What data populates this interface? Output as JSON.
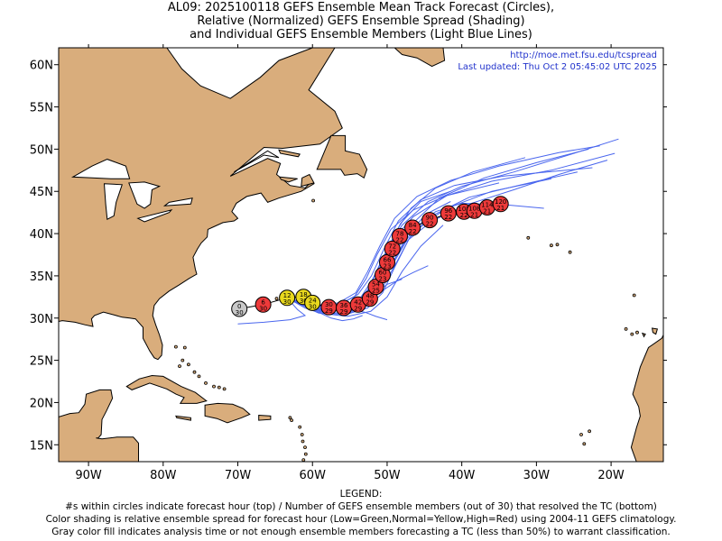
{
  "title": {
    "line1": "AL09: 2025100118 GEFS Ensemble Mean Track Forecast (Circles),",
    "line2": "Relative (Normalized) GEFS Ensemble Spread (Shading)",
    "line3": "and Individual GEFS Ensemble Members (Light Blue Lines)"
  },
  "credit": {
    "url": "http://moe.met.fsu.edu/tcspread",
    "updated": "Last updated: Thu Oct 2 05:45:02 UTC 2025"
  },
  "axes": {
    "lon_range": [
      -94,
      -13
    ],
    "lat_range": [
      13,
      62
    ],
    "x_ticks": [
      {
        "lon": -90,
        "label": "90W"
      },
      {
        "lon": -80,
        "label": "80W"
      },
      {
        "lon": -70,
        "label": "70W"
      },
      {
        "lon": -60,
        "label": "60W"
      },
      {
        "lon": -50,
        "label": "50W"
      },
      {
        "lon": -40,
        "label": "40W"
      },
      {
        "lon": -30,
        "label": "30W"
      },
      {
        "lon": -20,
        "label": "20W"
      }
    ],
    "y_ticks": [
      {
        "lat": 15,
        "label": "15N"
      },
      {
        "lat": 20,
        "label": "20N"
      },
      {
        "lat": 25,
        "label": "25N"
      },
      {
        "lat": 30,
        "label": "30N"
      },
      {
        "lat": 35,
        "label": "35N"
      },
      {
        "lat": 40,
        "label": "40N"
      },
      {
        "lat": 45,
        "label": "45N"
      },
      {
        "lat": 50,
        "label": "50N"
      },
      {
        "lat": 55,
        "label": "55N"
      },
      {
        "lat": 60,
        "label": "60N"
      }
    ]
  },
  "colors": {
    "land": "#d9ad7c",
    "ocean": "#ffffff",
    "member_line": "#4a66ee",
    "analysis": "#c8c8c8",
    "normal": "#e8d81e",
    "high": "#ee3a3a"
  },
  "track": [
    {
      "hour": "0",
      "members": "30",
      "lon": -69.8,
      "lat": 31.1,
      "spread": "analysis"
    },
    {
      "hour": "6",
      "members": "30",
      "lon": -66.6,
      "lat": 31.6,
      "spread": "high"
    },
    {
      "hour": "12",
      "members": "30",
      "lon": -63.4,
      "lat": 32.4,
      "spread": "normal"
    },
    {
      "hour": "18",
      "members": "30",
      "lon": -61.2,
      "lat": 32.5,
      "spread": "normal"
    },
    {
      "hour": "24",
      "members": "30",
      "lon": -60.0,
      "lat": 31.8,
      "spread": "normal"
    },
    {
      "hour": "30",
      "members": "29",
      "lon": -57.8,
      "lat": 31.3,
      "spread": "high"
    },
    {
      "hour": "36",
      "members": "29",
      "lon": -55.8,
      "lat": 31.2,
      "spread": "high"
    },
    {
      "hour": "42",
      "members": "29",
      "lon": -53.9,
      "lat": 31.6,
      "spread": "high"
    },
    {
      "hour": "48",
      "members": "29",
      "lon": -52.3,
      "lat": 32.3,
      "spread": "high"
    },
    {
      "hour": "54",
      "members": "25",
      "lon": -51.5,
      "lat": 33.7,
      "spread": "high"
    },
    {
      "hour": "60",
      "members": "23",
      "lon": -50.6,
      "lat": 35.1,
      "spread": "high"
    },
    {
      "hour": "66",
      "members": "23",
      "lon": -50.0,
      "lat": 36.6,
      "spread": "high"
    },
    {
      "hour": "72",
      "members": "22",
      "lon": -49.3,
      "lat": 38.2,
      "spread": "high"
    },
    {
      "hour": "78",
      "members": "22",
      "lon": -48.3,
      "lat": 39.7,
      "spread": "high"
    },
    {
      "hour": "84",
      "members": "22",
      "lon": -46.6,
      "lat": 40.7,
      "spread": "high"
    },
    {
      "hour": "90",
      "members": "22",
      "lon": -44.3,
      "lat": 41.6,
      "spread": "high"
    },
    {
      "hour": "96",
      "members": "22",
      "lon": -41.8,
      "lat": 42.4,
      "spread": "high"
    },
    {
      "hour": "102",
      "members": "22",
      "lon": -39.7,
      "lat": 42.6,
      "spread": "high"
    },
    {
      "hour": "108",
      "members": "21",
      "lon": -38.3,
      "lat": 42.7,
      "spread": "high"
    },
    {
      "hour": "114",
      "members": "21",
      "lon": -36.6,
      "lat": 43.1,
      "spread": "high"
    },
    {
      "hour": "120",
      "members": "21",
      "lon": -34.8,
      "lat": 43.5,
      "spread": "high"
    }
  ],
  "member_tracks": [
    [
      [
        -63.4,
        32.4
      ],
      [
        -59.5,
        31.0
      ],
      [
        -56,
        30.8
      ],
      [
        -53.5,
        31.5
      ],
      [
        -51.5,
        33.0
      ],
      [
        -49.5,
        36.0
      ],
      [
        -47.5,
        39.0
      ],
      [
        -44,
        41.5
      ],
      [
        -39,
        43.5
      ],
      [
        -33,
        45.2
      ],
      [
        -27,
        47.0
      ],
      [
        -20.5,
        48.7
      ]
    ],
    [
      [
        -63.4,
        32.4
      ],
      [
        -59.8,
        31.3
      ],
      [
        -56.3,
        31.2
      ],
      [
        -53.8,
        32.1
      ],
      [
        -52.0,
        34.5
      ],
      [
        -50.2,
        37.8
      ],
      [
        -48,
        41.0
      ],
      [
        -44.5,
        43.8
      ],
      [
        -40,
        45.6
      ],
      [
        -33,
        47.3
      ],
      [
        -25,
        49.5
      ],
      [
        -19,
        51.2
      ]
    ],
    [
      [
        -63.4,
        32.4
      ],
      [
        -59.3,
        30.8
      ],
      [
        -55.5,
        30.5
      ],
      [
        -52.5,
        31.5
      ],
      [
        -50.5,
        33.8
      ],
      [
        -48.5,
        37.0
      ],
      [
        -46.5,
        40.3
      ],
      [
        -42,
        43.0
      ],
      [
        -36,
        45.0
      ],
      [
        -28,
        46.5
      ]
    ],
    [
      [
        -63.4,
        32.4
      ],
      [
        -59.6,
        31.0
      ],
      [
        -56.1,
        30.9
      ],
      [
        -53.3,
        31.8
      ],
      [
        -51.2,
        34.0
      ],
      [
        -49.0,
        37.5
      ],
      [
        -46.8,
        41.0
      ],
      [
        -43,
        44.2
      ],
      [
        -37,
        46.6
      ],
      [
        -30,
        48.4
      ],
      [
        -23,
        50.0
      ]
    ],
    [
      [
        -63.4,
        32.4
      ],
      [
        -60.0,
        31.5
      ],
      [
        -56.8,
        31.5
      ],
      [
        -54.4,
        32.5
      ],
      [
        -52.8,
        34.7
      ],
      [
        -51.3,
        37.6
      ],
      [
        -49.5,
        40.5
      ],
      [
        -46.5,
        42.8
      ],
      [
        -42,
        44.5
      ],
      [
        -35,
        46.0
      ]
    ],
    [
      [
        -63.4,
        32.4
      ],
      [
        -59.2,
        30.6
      ],
      [
        -55.3,
        30.2
      ],
      [
        -52.2,
        30.8
      ],
      [
        -50.0,
        32.5
      ],
      [
        -48.0,
        35.5
      ],
      [
        -45.5,
        38.5
      ],
      [
        -42.5,
        41.0
      ]
    ],
    [
      [
        -63.4,
        32.4
      ],
      [
        -59.9,
        31.2
      ],
      [
        -56.5,
        31.0
      ],
      [
        -54.0,
        31.7
      ],
      [
        -52.5,
        33.5
      ],
      [
        -51.0,
        36.2
      ],
      [
        -49.2,
        39.3
      ],
      [
        -46.5,
        42.0
      ],
      [
        -42,
        44.5
      ],
      [
        -36,
        46.2
      ],
      [
        -28,
        47.5
      ],
      [
        -19.5,
        49.5
      ]
    ],
    [
      [
        -63.4,
        32.4
      ],
      [
        -59.4,
        31.0
      ],
      [
        -55.8,
        31.0
      ],
      [
        -53.0,
        32.0
      ],
      [
        -50.8,
        34.2
      ],
      [
        -48.8,
        37.3
      ],
      [
        -46.5,
        40.5
      ],
      [
        -43.5,
        42.6
      ],
      [
        -40,
        43.6
      ],
      [
        -34,
        43.4
      ],
      [
        -29,
        43.0
      ]
    ],
    [
      [
        -63.4,
        32.4
      ],
      [
        -59.7,
        31.4
      ],
      [
        -56.4,
        31.6
      ],
      [
        -53.9,
        32.8
      ],
      [
        -52.1,
        35.0
      ],
      [
        -50.4,
        38.2
      ],
      [
        -48.5,
        41.5
      ],
      [
        -45.5,
        44.0
      ],
      [
        -41,
        45.7
      ],
      [
        -34.5,
        46.8
      ],
      [
        -26,
        47.5
      ],
      [
        -22.5,
        47.8
      ]
    ],
    [
      [
        -63.4,
        32.4
      ],
      [
        -59.1,
        30.9
      ],
      [
        -55.5,
        30.8
      ],
      [
        -52.8,
        31.6
      ],
      [
        -50.9,
        33.6
      ],
      [
        -49.2,
        36.6
      ],
      [
        -47.3,
        39.8
      ],
      [
        -44.8,
        42.3
      ],
      [
        -41.5,
        43.8
      ]
    ],
    [
      [
        -63.4,
        32.4
      ],
      [
        -59.5,
        31.1
      ],
      [
        -56.0,
        31.1
      ],
      [
        -53.4,
        32.2
      ],
      [
        -51.6,
        34.6
      ],
      [
        -50.0,
        37.8
      ],
      [
        -48.2,
        41.2
      ],
      [
        -45.5,
        43.8
      ],
      [
        -41.5,
        45.0
      ]
    ],
    [
      [
        -63.4,
        32.4
      ],
      [
        -60.2,
        31.2
      ],
      [
        -57.0,
        31.0
      ],
      [
        -54.4,
        31.4
      ],
      [
        -52.0,
        32.3
      ],
      [
        -50.2,
        33.5
      ],
      [
        -48.5,
        34.5
      ],
      [
        -46.5,
        35.4
      ],
      [
        -44.5,
        36.2
      ]
    ],
    [
      [
        -63.4,
        32.4
      ],
      [
        -60.0,
        31.0
      ],
      [
        -56.8,
        30.6
      ],
      [
        -54.5,
        30.9
      ],
      [
        -52.8,
        31.8
      ],
      [
        -51.5,
        33.0
      ],
      [
        -50.0,
        34.0
      ],
      [
        -48.0,
        34.6
      ]
    ],
    [
      [
        -63.4,
        32.4
      ],
      [
        -60.5,
        31.6
      ],
      [
        -57.5,
        31.2
      ],
      [
        -55.0,
        31.0
      ],
      [
        -53.0,
        30.7
      ],
      [
        -51.5,
        30.2
      ],
      [
        -50.0,
        29.8
      ]
    ],
    [
      [
        -63.4,
        32.4
      ],
      [
        -61.0,
        31.2
      ],
      [
        -59.0,
        30.6
      ],
      [
        -57.5,
        30.0
      ],
      [
        -56.0,
        29.7
      ],
      [
        -54.5,
        29.9
      ],
      [
        -53.3,
        30.3
      ]
    ],
    [
      [
        -63.4,
        32.4
      ],
      [
        -62.0,
        31.0
      ],
      [
        -61.0,
        30.3
      ],
      [
        -63.0,
        29.8
      ],
      [
        -66.5,
        29.5
      ],
      [
        -70.0,
        29.3
      ]
    ],
    [
      [
        -63.4,
        32.4
      ],
      [
        -59.4,
        30.7
      ],
      [
        -55.6,
        30.4
      ],
      [
        -52.6,
        31.2
      ],
      [
        -50.6,
        33.0
      ],
      [
        -49.0,
        36.0
      ],
      [
        -47.0,
        39.5
      ],
      [
        -43.8,
        42.2
      ],
      [
        -39,
        44.3
      ],
      [
        -32,
        45.8
      ],
      [
        -24.5,
        47.3
      ]
    ],
    [
      [
        -63.4,
        32.4
      ],
      [
        -59.7,
        31.5
      ],
      [
        -56.5,
        31.8
      ],
      [
        -54.2,
        33.0
      ],
      [
        -52.6,
        35.5
      ],
      [
        -51.0,
        38.5
      ],
      [
        -49.0,
        41.8
      ],
      [
        -46.0,
        44.4
      ],
      [
        -41.5,
        46.3
      ],
      [
        -35,
        48.0
      ],
      [
        -27,
        49.6
      ],
      [
        -21.5,
        50.4
      ]
    ],
    [
      [
        -63.4,
        32.4
      ],
      [
        -59.3,
        30.9
      ],
      [
        -55.9,
        31.0
      ],
      [
        -53.5,
        32.0
      ],
      [
        -51.8,
        34.0
      ],
      [
        -50.5,
        36.8
      ],
      [
        -49.0,
        40.0
      ],
      [
        -46.8,
        43.0
      ],
      [
        -43.5,
        45.4
      ],
      [
        -38.5,
        47.3
      ],
      [
        -31.5,
        49.0
      ]
    ]
  ],
  "legend": {
    "heading": "LEGEND:",
    "line1": "#s within circles indicate forecast hour (top) / Number of GEFS ensemble members (out of 30) that resolved the TC (bottom)",
    "line2": "Color shading is relative ensemble spread for forecast hour (Low=Green,Normal=Yellow,High=Red) using 2004-11 GEFS climatology.",
    "line3": "Gray color fill indicates analysis time or not enough ensemble members forecasting a TC (less than 50%) to warrant classification."
  }
}
